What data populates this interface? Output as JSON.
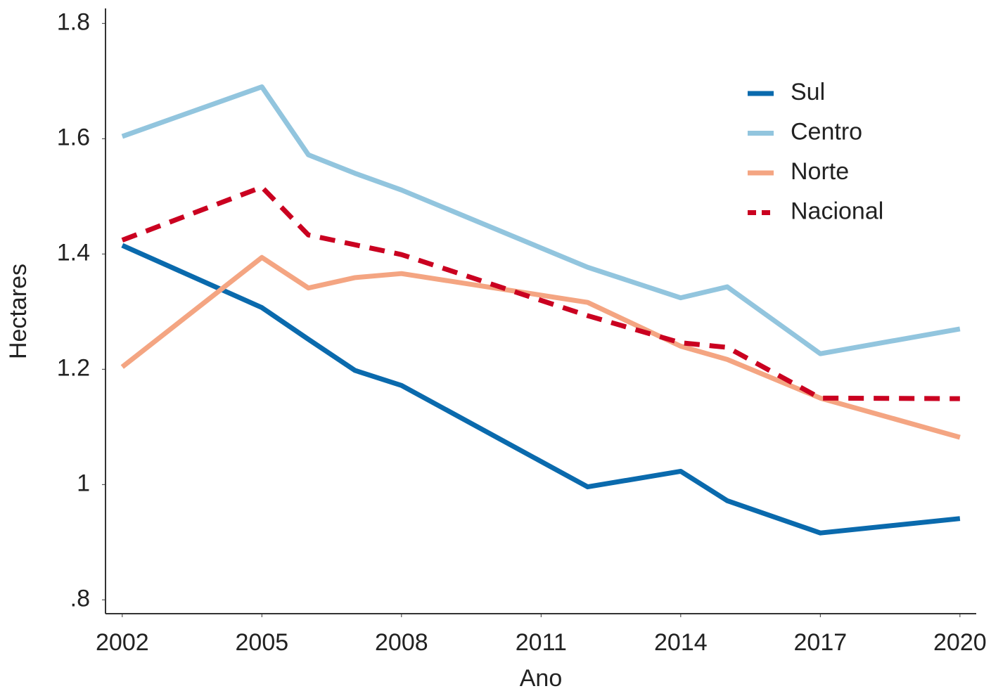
{
  "chart_data": {
    "type": "line",
    "x_label": "Ano",
    "y_label": "Hectares",
    "x": [
      2002,
      2005,
      2006,
      2007,
      2008,
      2012,
      2014,
      2015,
      2017,
      2020
    ],
    "series": [
      {
        "name": "Sul",
        "color": "#0a6aad",
        "linestyle": "solid",
        "values": [
          1.415,
          1.307,
          1.252,
          1.198,
          1.172,
          0.996,
          1.023,
          0.972,
          0.916,
          0.941
        ]
      },
      {
        "name": "Centro",
        "color": "#92c5de",
        "linestyle": "solid",
        "values": [
          1.604,
          1.69,
          1.572,
          1.54,
          1.511,
          1.377,
          1.324,
          1.343,
          1.227,
          1.27
        ]
      },
      {
        "name": "Norte",
        "color": "#f4a582",
        "linestyle": "solid",
        "values": [
          1.204,
          1.394,
          1.341,
          1.359,
          1.366,
          1.316,
          1.24,
          1.217,
          1.15,
          1.082
        ]
      },
      {
        "name": "Nacional",
        "color": "#ca0020",
        "linestyle": "dashed",
        "values": [
          1.424,
          1.516,
          1.433,
          1.416,
          1.399,
          1.293,
          1.246,
          1.238,
          1.15,
          1.149
        ]
      }
    ],
    "xlim": [
      2001.64,
      2020.35
    ],
    "xticks": [
      2002,
      2005,
      2008,
      2011,
      2014,
      2017,
      2020
    ],
    "ylim": [
      0.776,
      1.826
    ],
    "yticks": [
      {
        "value": 0.8,
        "label": ".8"
      },
      1,
      1.2,
      1.4,
      1.6,
      1.8
    ],
    "grid": false,
    "legend": "upper right"
  }
}
